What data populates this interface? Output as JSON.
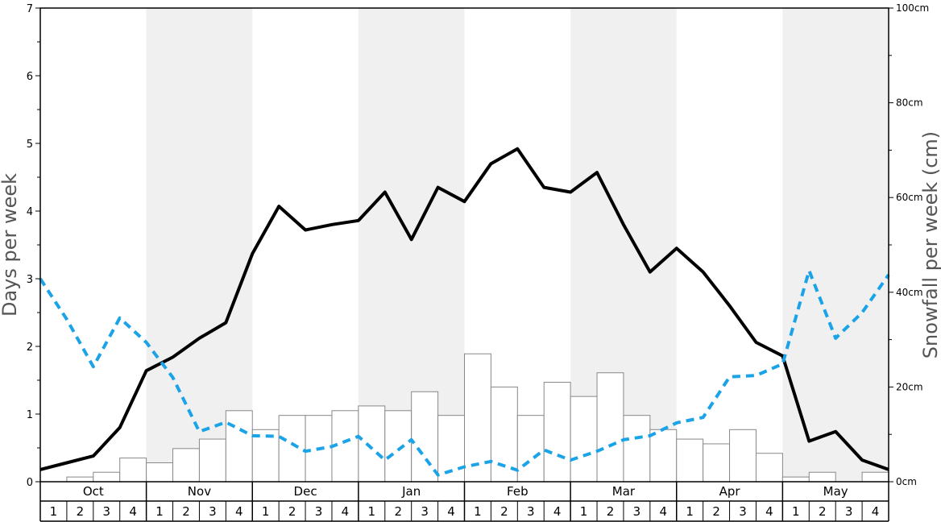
{
  "chart_data": {
    "type": "bar",
    "months": [
      "Oct",
      "Nov",
      "Dec",
      "Jan",
      "Feb",
      "Mar",
      "Apr",
      "May"
    ],
    "week_labels": [
      "1",
      "2",
      "3",
      "4"
    ],
    "ylabel_left": "Days per week",
    "ylabel_right": "Snowfall per week (cm)",
    "ylim_left": [
      0,
      7
    ],
    "yticks_left": [
      "0",
      "1",
      "2",
      "3",
      "4",
      "5",
      "6",
      "7"
    ],
    "ylim_right": [
      0,
      100
    ],
    "yticks_right": [
      "0cm",
      "20cm",
      "40cm",
      "60cm",
      "80cm",
      "100cm"
    ],
    "series": [
      {
        "style": "bars",
        "axis": "right",
        "values": [
          0,
          1,
          2,
          5,
          4,
          7,
          9,
          15,
          11,
          14,
          14,
          15,
          16,
          15,
          19,
          14,
          27,
          20,
          14,
          21,
          18,
          23,
          14,
          11,
          9,
          8,
          11,
          6,
          1,
          2,
          0,
          2
        ]
      },
      {
        "style": "solid-line",
        "color": "#000000",
        "axis": "left",
        "values": [
          0.18,
          0.28,
          0.38,
          0.8,
          1.64,
          1.84,
          2.12,
          2.35,
          3.37,
          4.07,
          3.72,
          3.8,
          3.86,
          4.28,
          3.58,
          4.35,
          4.14,
          4.7,
          4.92,
          4.35,
          4.28,
          4.57,
          3.8,
          3.1,
          3.45,
          3.1,
          2.6,
          2.06,
          1.86,
          0.6,
          0.74,
          0.32,
          0.18
        ]
      },
      {
        "style": "dashed-line",
        "color": "#1ba3e8",
        "axis": "left",
        "values": [
          3.0,
          2.4,
          1.7,
          2.42,
          2.06,
          1.54,
          0.74,
          0.88,
          0.68,
          0.67,
          0.45,
          0.52,
          0.67,
          0.32,
          0.62,
          0.1,
          0.22,
          0.3,
          0.17,
          0.47,
          0.32,
          0.45,
          0.62,
          0.68,
          0.87,
          0.95,
          1.55,
          1.57,
          1.74,
          3.12,
          2.12,
          2.5,
          3.06
        ]
      }
    ],
    "colors": {
      "shade": "#f0f0f0",
      "bar_fill": "#ffffff",
      "bar_stroke": "#888888"
    }
  }
}
